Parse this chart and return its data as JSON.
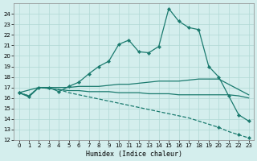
{
  "xlabel": "Humidex (Indice chaleur)",
  "xlim": [
    -0.5,
    23.5
  ],
  "ylim": [
    12,
    25
  ],
  "yticks": [
    12,
    13,
    14,
    15,
    16,
    17,
    18,
    19,
    20,
    21,
    22,
    23,
    24
  ],
  "xticks": [
    0,
    1,
    2,
    3,
    4,
    5,
    6,
    7,
    8,
    9,
    10,
    11,
    12,
    13,
    14,
    15,
    16,
    17,
    18,
    19,
    20,
    21,
    22,
    23
  ],
  "bg_color": "#d4eeed",
  "grid_color": "#b0d8d4",
  "line_color": "#1a7a6e",
  "line1_x": [
    0,
    1,
    2,
    3,
    4,
    5,
    6,
    7,
    8,
    9,
    10,
    11,
    12,
    13,
    14,
    15,
    16,
    17,
    18,
    19,
    20,
    21,
    22,
    23
  ],
  "line1_y": [
    16.5,
    16.1,
    17.0,
    17.0,
    16.6,
    17.1,
    17.5,
    18.3,
    19.0,
    19.5,
    21.1,
    21.5,
    20.4,
    20.3,
    20.9,
    24.5,
    23.3,
    22.7,
    22.5,
    19.0,
    18.0,
    16.2,
    14.4,
    13.8
  ],
  "line2_x": [
    0,
    2,
    3,
    4,
    5,
    6,
    7,
    8,
    9,
    10,
    11,
    12,
    13,
    14,
    15,
    16,
    17,
    18,
    19,
    20,
    23
  ],
  "line2_y": [
    16.5,
    17.0,
    17.0,
    17.0,
    17.0,
    17.1,
    17.1,
    17.1,
    17.2,
    17.3,
    17.3,
    17.4,
    17.5,
    17.6,
    17.6,
    17.6,
    17.7,
    17.8,
    17.8,
    17.8,
    16.3
  ],
  "line3_x": [
    0,
    1,
    2,
    3,
    4,
    5,
    6,
    7,
    8,
    9,
    10,
    11,
    12,
    13,
    14,
    15,
    16,
    17,
    18,
    19,
    20,
    21,
    22,
    23
  ],
  "line3_y": [
    16.5,
    16.2,
    17.0,
    16.9,
    16.8,
    16.7,
    16.7,
    16.6,
    16.6,
    16.6,
    16.5,
    16.5,
    16.5,
    16.4,
    16.4,
    16.4,
    16.3,
    16.3,
    16.3,
    16.3,
    16.3,
    16.3,
    16.2,
    16.0
  ],
  "line4_x": [
    0,
    1,
    2,
    3,
    4,
    5,
    6,
    7,
    8,
    9,
    10,
    11,
    12,
    13,
    14,
    15,
    16,
    17,
    18,
    19,
    20,
    21,
    22,
    23
  ],
  "line4_y": [
    16.5,
    16.2,
    17.0,
    16.9,
    16.8,
    16.5,
    16.3,
    16.1,
    15.9,
    15.7,
    15.5,
    15.3,
    15.1,
    14.9,
    14.7,
    14.5,
    14.3,
    14.1,
    13.8,
    13.5,
    13.2,
    12.8,
    12.5,
    12.2
  ]
}
